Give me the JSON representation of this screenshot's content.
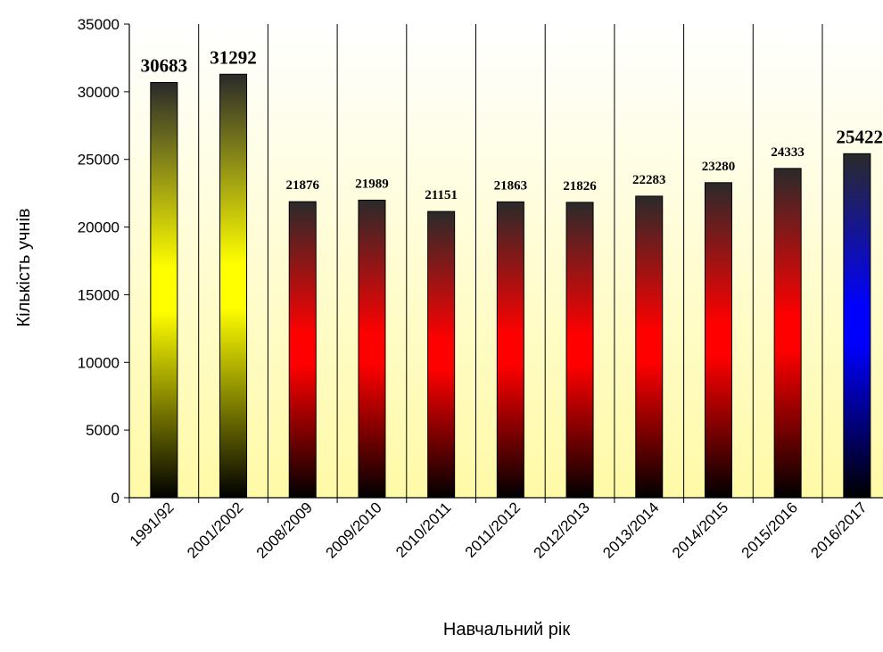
{
  "chart_data": {
    "type": "bar",
    "title": "",
    "xlabel": "Навчальний рік",
    "ylabel": "Кількість учнів",
    "ylim": [
      0,
      35000
    ],
    "yticks": [
      0,
      5000,
      10000,
      15000,
      20000,
      25000,
      30000,
      35000
    ],
    "grid": "vertical lines between categories",
    "legend": "none",
    "categories": [
      "1991/92",
      "2001/2002",
      "2008/2009",
      "2009/2010",
      "2010/2011",
      "2011/2012",
      "2012/2013",
      "2013/2014",
      "2014/2015",
      "2015/2016",
      "2016/2017"
    ],
    "values": [
      30683,
      31292,
      21876,
      21989,
      21151,
      21863,
      21826,
      22283,
      23280,
      24333,
      25422
    ],
    "data_labels": [
      "30683",
      "31292",
      "21876",
      "21989",
      "21151",
      "21863",
      "21826",
      "22283",
      "23280",
      "24333",
      "25422"
    ],
    "bar_styles": [
      "yellow-black",
      "yellow-black",
      "red-black",
      "red-black",
      "red-black",
      "red-black",
      "red-black",
      "red-black",
      "red-black",
      "red-black",
      "blue-black"
    ],
    "colors": {
      "background_top": "#ffffff",
      "background_bottom": "#fffaa6",
      "yellow": "#ffff00",
      "red": "#ff0000",
      "blue": "#0000ff",
      "dark": "#000000"
    }
  }
}
